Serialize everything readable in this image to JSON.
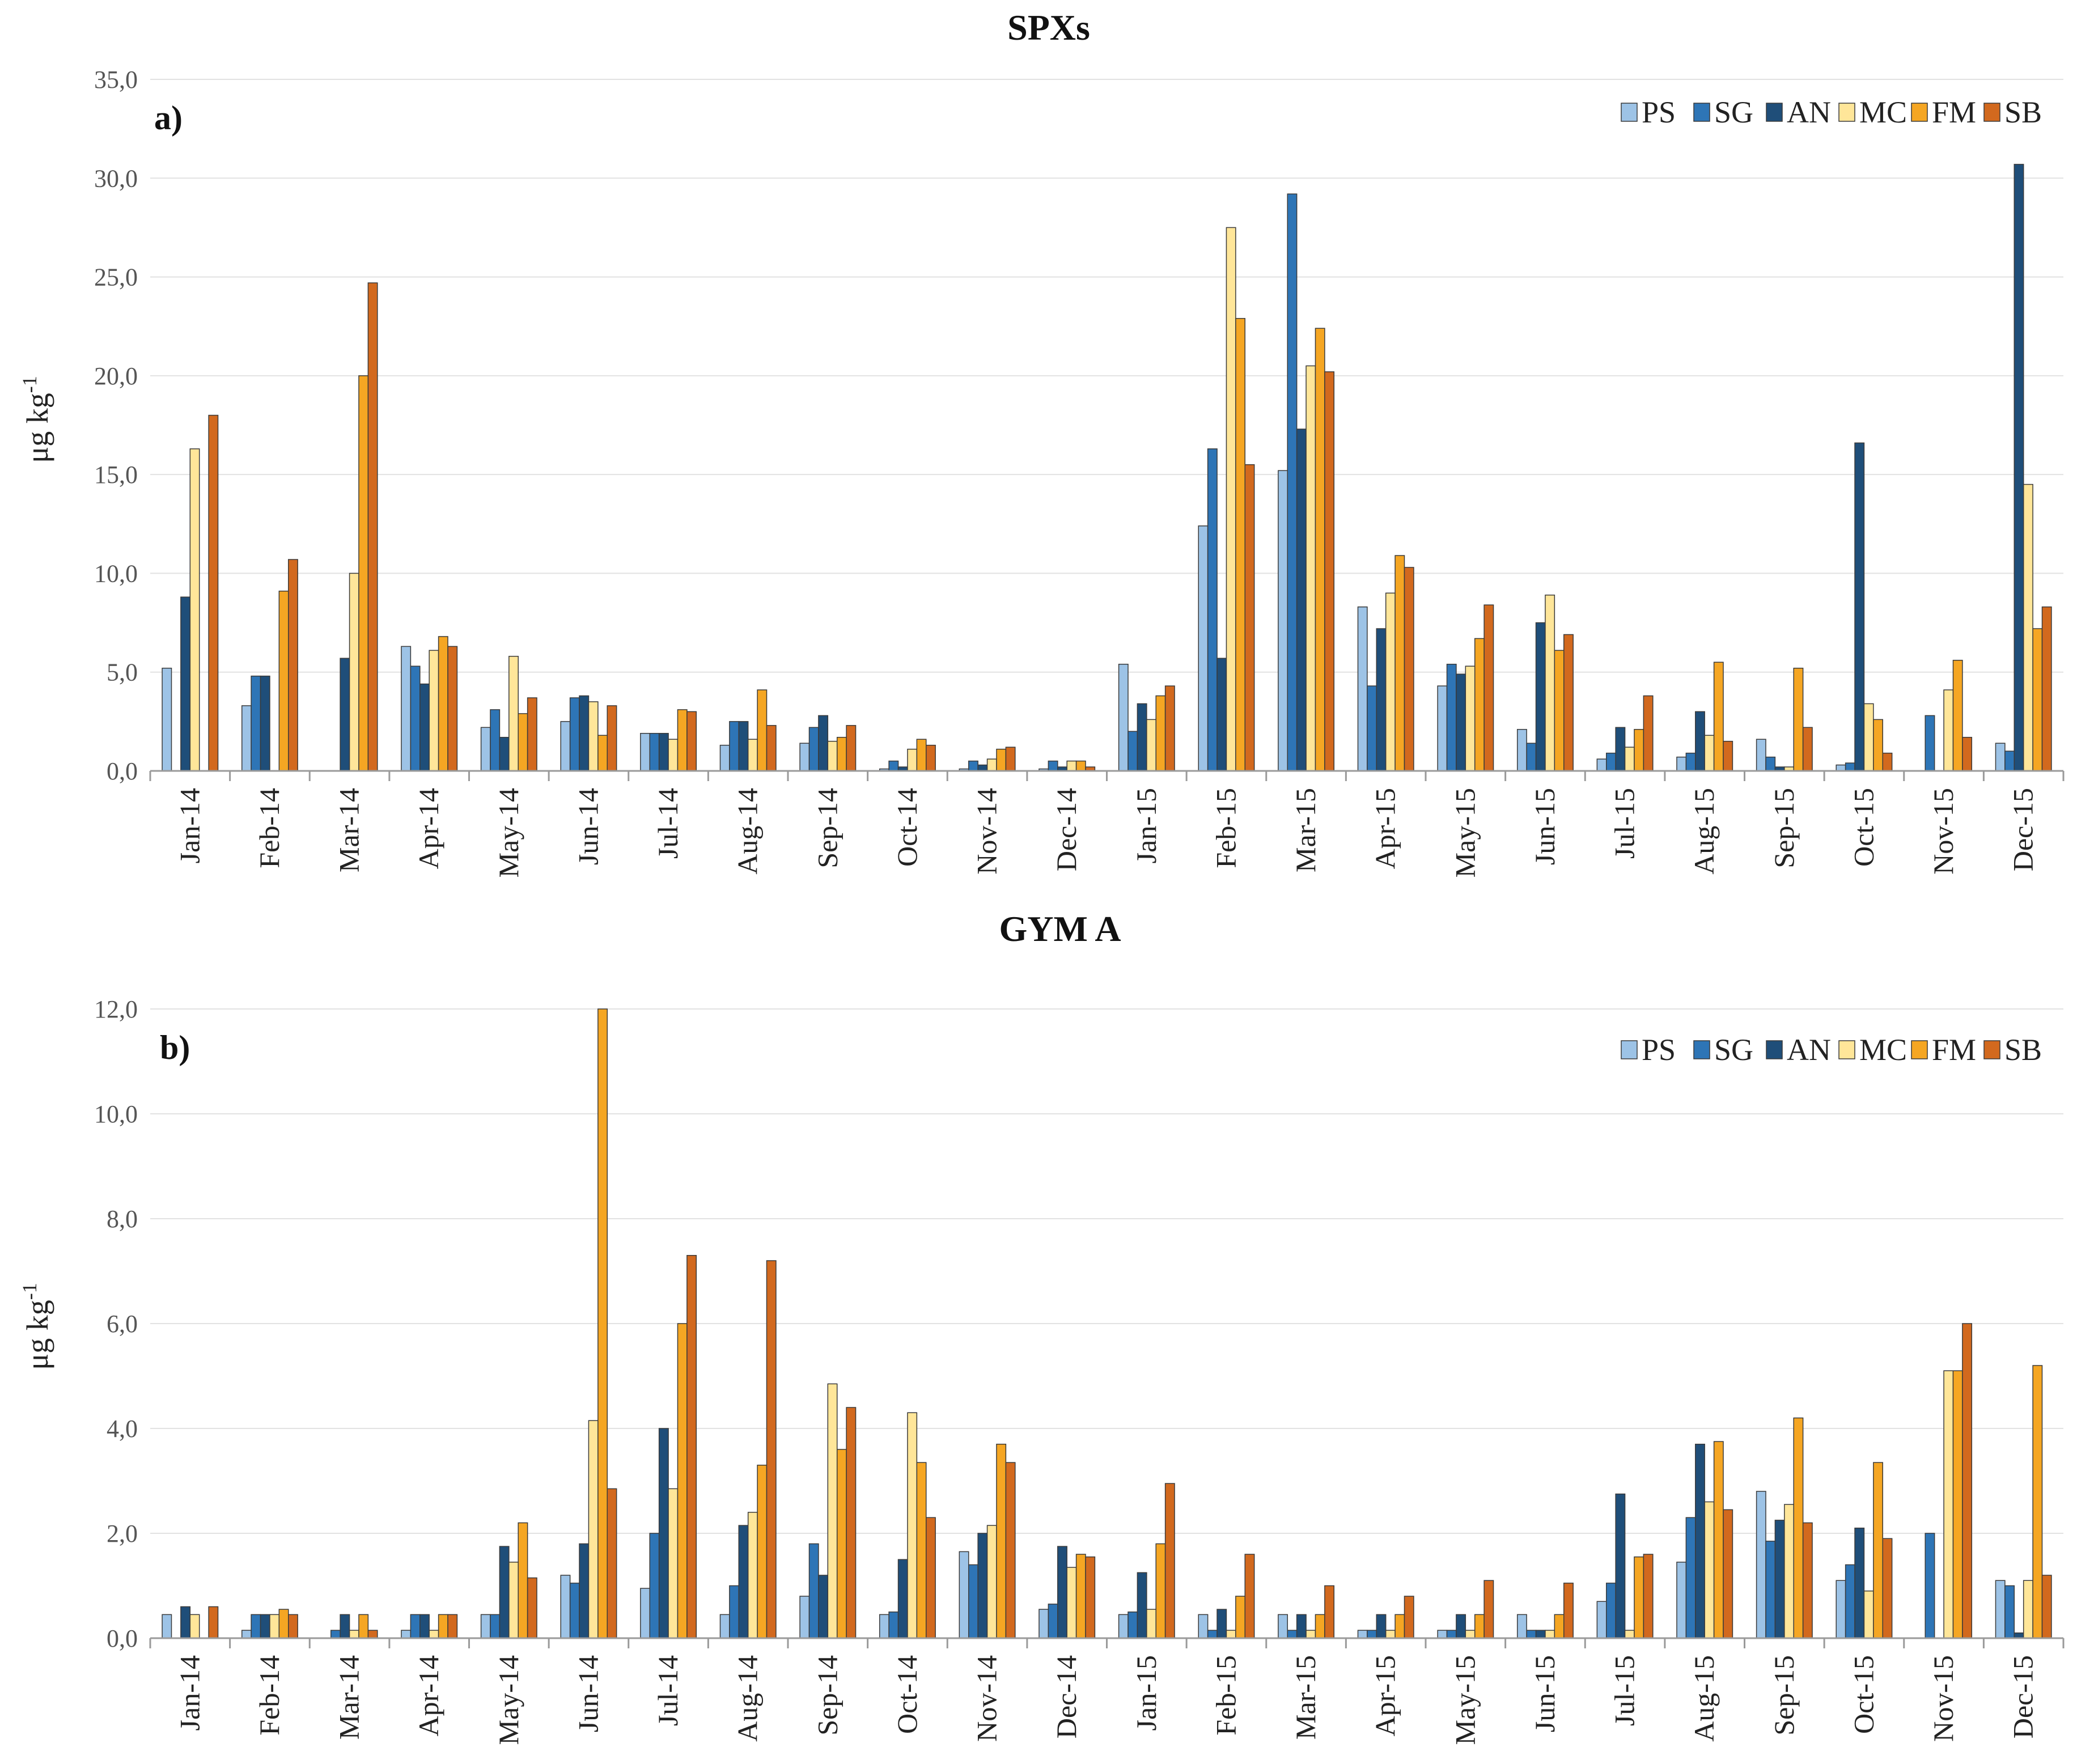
{
  "colors": {
    "PS": "#9dc3e6",
    "SG": "#2e75b6",
    "AN": "#1f4e79",
    "MC": "#ffe699",
    "FM": "#f5a623",
    "SB": "#d2691e"
  },
  "chart_data": [
    {
      "type": "bar",
      "title": "SPXs",
      "panel_label": "a)",
      "ylabel": "μg kg",
      "ylabel_sup": "-1",
      "ylim": [
        0,
        35
      ],
      "ytick_values": [
        0,
        5,
        10,
        15,
        20,
        25,
        30,
        35
      ],
      "ytick_labels": [
        "0,0",
        "5,0",
        "10,0",
        "15,0",
        "20,0",
        "25,0",
        "30,0",
        "35,0"
      ],
      "legend_position": "top-right",
      "categories": [
        "Jan-14",
        "Feb-14",
        "Mar-14",
        "Apr-14",
        "May-14",
        "Jun-14",
        "Jul-14",
        "Aug-14",
        "Sep-14",
        "Oct-14",
        "Nov-14",
        "Dec-14",
        "Jan-15",
        "Feb-15",
        "Mar-15",
        "Apr-15",
        "May-15",
        "Jun-15",
        "Jul-15",
        "Aug-15",
        "Sep-15",
        "Oct-15",
        "Nov-15",
        "Dec-15"
      ],
      "series": [
        {
          "name": "PS",
          "values": [
            5.2,
            3.3,
            0,
            6.3,
            2.2,
            2.5,
            1.9,
            1.3,
            1.4,
            0.1,
            0.1,
            0.1,
            5.4,
            12.4,
            15.2,
            8.3,
            4.3,
            2.1,
            0.6,
            0.7,
            1.6,
            0.3,
            0,
            1.4
          ]
        },
        {
          "name": "SG",
          "values": [
            0,
            4.8,
            0,
            5.3,
            3.1,
            3.7,
            1.9,
            2.5,
            2.2,
            0.5,
            0.5,
            0.5,
            2.0,
            16.3,
            29.2,
            4.3,
            5.4,
            1.4,
            0.9,
            0.9,
            0.7,
            0.4,
            2.8,
            1.0
          ]
        },
        {
          "name": "AN",
          "values": [
            8.8,
            4.8,
            5.7,
            4.4,
            1.7,
            3.8,
            1.9,
            2.5,
            2.8,
            0.2,
            0.3,
            0.2,
            3.4,
            5.7,
            17.3,
            7.2,
            4.9,
            7.5,
            2.2,
            3.0,
            0.2,
            16.6,
            0,
            30.7
          ]
        },
        {
          "name": "MC",
          "values": [
            16.3,
            0,
            10.0,
            6.1,
            5.8,
            3.5,
            1.6,
            1.6,
            1.5,
            1.1,
            0.6,
            0.5,
            2.6,
            27.5,
            20.5,
            9.0,
            5.3,
            8.9,
            1.2,
            1.8,
            0.2,
            3.4,
            4.1,
            14.5
          ]
        },
        {
          "name": "FM",
          "values": [
            0,
            9.1,
            20.0,
            6.8,
            2.9,
            1.8,
            3.1,
            4.1,
            1.7,
            1.6,
            1.1,
            0.5,
            3.8,
            22.9,
            22.4,
            10.9,
            6.7,
            6.1,
            2.1,
            5.5,
            5.2,
            2.6,
            5.6,
            7.2
          ]
        },
        {
          "name": "SB",
          "values": [
            18.0,
            10.7,
            24.7,
            6.3,
            3.7,
            3.3,
            3.0,
            2.3,
            2.3,
            1.3,
            1.2,
            0.2,
            4.3,
            15.5,
            20.2,
            10.3,
            8.4,
            6.9,
            3.8,
            1.5,
            2.2,
            0.9,
            1.7,
            8.3
          ]
        }
      ]
    },
    {
      "type": "bar",
      "title": "GYM A",
      "panel_label": "b)",
      "ylabel": "μg kg",
      "ylabel_sup": "-1",
      "ylim": [
        0,
        12
      ],
      "ytick_values": [
        0,
        2,
        4,
        6,
        8,
        10,
        12
      ],
      "ytick_labels": [
        "0,0",
        "2,0",
        "4,0",
        "6,0",
        "8,0",
        "10,0",
        "12,0"
      ],
      "legend_position": "top-right",
      "categories": [
        "Jan-14",
        "Feb-14",
        "Mar-14",
        "Apr-14",
        "May-14",
        "Jun-14",
        "Jul-14",
        "Aug-14",
        "Sep-14",
        "Oct-14",
        "Nov-14",
        "Dec-14",
        "Jan-15",
        "Feb-15",
        "Mar-15",
        "Apr-15",
        "May-15",
        "Jun-15",
        "Jul-15",
        "Aug-15",
        "Sep-15",
        "Oct-15",
        "Nov-15",
        "Dec-15"
      ],
      "series": [
        {
          "name": "PS",
          "values": [
            0.45,
            0.15,
            0,
            0.15,
            0.45,
            1.2,
            0.95,
            0.45,
            0.8,
            0.45,
            1.65,
            0.55,
            0.45,
            0.45,
            0.45,
            0.15,
            0.15,
            0.45,
            0.7,
            1.45,
            2.8,
            1.1,
            0,
            1.1
          ]
        },
        {
          "name": "SG",
          "values": [
            0,
            0.45,
            0.15,
            0.45,
            0.45,
            1.05,
            2.0,
            1.0,
            1.8,
            0.5,
            1.4,
            0.65,
            0.5,
            0.15,
            0.15,
            0.15,
            0.15,
            0.15,
            1.05,
            2.3,
            1.85,
            1.4,
            2.0,
            1.0
          ]
        },
        {
          "name": "AN",
          "values": [
            0.6,
            0.45,
            0.45,
            0.45,
            1.75,
            1.8,
            4.0,
            2.15,
            1.2,
            1.5,
            2.0,
            1.75,
            1.25,
            0.55,
            0.45,
            0.45,
            0.45,
            0.15,
            2.75,
            3.7,
            2.25,
            2.1,
            0,
            0.1
          ]
        },
        {
          "name": "MC",
          "values": [
            0.45,
            0.45,
            0.15,
            0.15,
            1.45,
            4.15,
            2.85,
            2.4,
            4.85,
            4.3,
            2.15,
            1.35,
            0.55,
            0.15,
            0.15,
            0.15,
            0.15,
            0.15,
            0.15,
            2.6,
            2.55,
            0.9,
            5.1,
            1.1
          ]
        },
        {
          "name": "FM",
          "values": [
            0,
            0.55,
            0.45,
            0.45,
            2.2,
            12.0,
            6.0,
            3.3,
            3.6,
            3.35,
            3.7,
            1.6,
            1.8,
            0.8,
            0.45,
            0.45,
            0.45,
            0.45,
            1.55,
            3.75,
            4.2,
            3.35,
            5.1,
            5.2
          ]
        },
        {
          "name": "SB",
          "values": [
            0.6,
            0.45,
            0.15,
            0.45,
            1.15,
            2.85,
            7.3,
            7.2,
            4.4,
            2.3,
            3.35,
            1.55,
            2.95,
            1.6,
            1.0,
            0.8,
            1.1,
            1.05,
            1.6,
            2.45,
            2.2,
            1.9,
            6.0,
            1.2
          ]
        }
      ]
    }
  ]
}
